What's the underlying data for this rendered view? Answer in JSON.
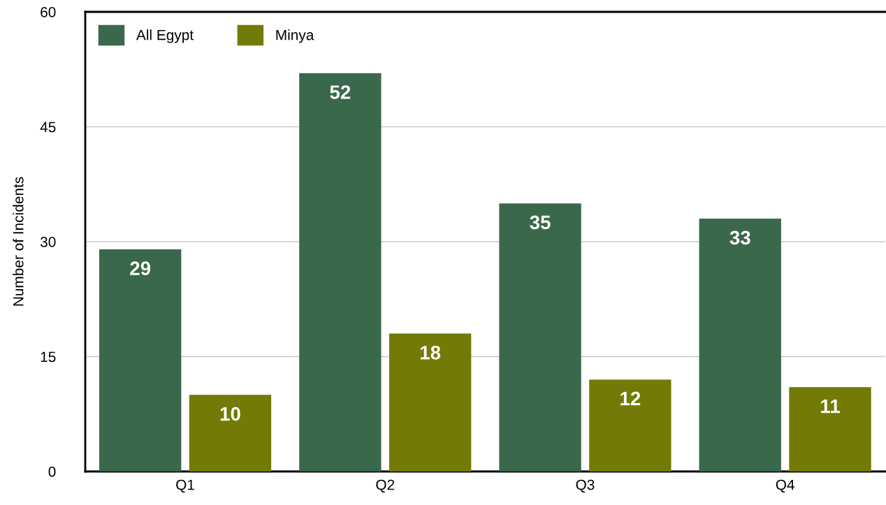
{
  "chart_data": {
    "type": "bar",
    "ylabel": "Number of Incidents",
    "categories": [
      "Q1",
      "Q2",
      "Q3",
      "Q4"
    ],
    "series": [
      {
        "name": "All Egypt",
        "color": "#3a684b",
        "values": [
          29,
          52,
          35,
          33
        ]
      },
      {
        "name": "Minya",
        "color": "#737a05",
        "values": [
          10,
          18,
          12,
          11
        ]
      }
    ],
    "ylim": [
      0,
      60
    ],
    "yticks": [
      0,
      15,
      30,
      45,
      60
    ],
    "grid": "y",
    "legend": "top left",
    "data_labels": true
  }
}
